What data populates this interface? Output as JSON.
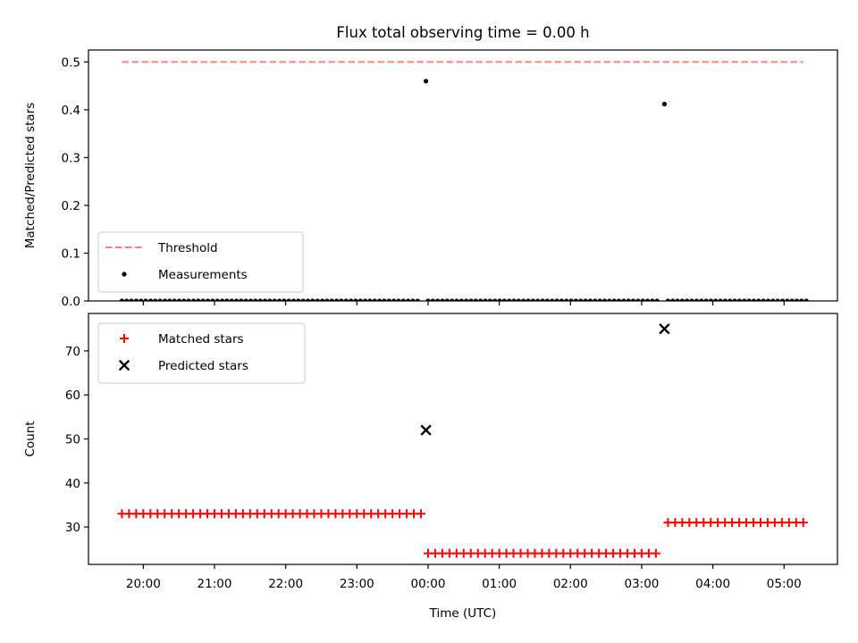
{
  "chart_data": {
    "type": "scatter",
    "title": "Flux total observing time = 0.00 h",
    "x_axis": {
      "label": "Time (UTC)",
      "unit": "hours since 20:00 UTC of first night",
      "range": [
        -0.77,
        9.75
      ],
      "ticks": [
        0,
        1,
        2,
        3,
        4,
        5,
        6,
        7,
        8,
        9
      ],
      "tick_labels": [
        "20:00",
        "21:00",
        "22:00",
        "23:00",
        "00:00",
        "01:00",
        "02:00",
        "03:00",
        "04:00",
        "05:00"
      ]
    },
    "panels": [
      {
        "id": "ratio",
        "ylabel": "Matched/Predicted stars",
        "ylim": [
          0,
          0.525
        ],
        "yticks": [
          0,
          0.1,
          0.2,
          0.3,
          0.4,
          0.5
        ],
        "ytick_labels": [
          "0.0",
          "0.1",
          "0.2",
          "0.3",
          "0.4",
          "0.5"
        ],
        "legend": {
          "position": "lower-left",
          "entries": [
            {
              "label": "Threshold",
              "style": "dashed-line",
              "color": "#ff7f7f"
            },
            {
              "label": "Measurements",
              "style": "dot",
              "color": "#000000"
            }
          ]
        },
        "series": [
          {
            "name": "Threshold",
            "kind": "hline",
            "color": "#ff7f7f",
            "y": 0.5,
            "x_range": [
              -0.3,
              9.27
            ]
          },
          {
            "name": "Measurements",
            "kind": "dots",
            "color": "#000000",
            "segments": [
              {
                "x_start": -0.3,
                "x_end": 3.92,
                "step": 0.067,
                "y": 0.0
              },
              {
                "x_start": 4.0,
                "x_end": 7.27,
                "step": 0.067,
                "y": 0.0
              },
              {
                "x_start": 7.37,
                "x_end": 9.35,
                "step": 0.067,
                "y": 0.0
              }
            ],
            "points": [
              {
                "x": 3.97,
                "y": 0.46
              },
              {
                "x": 7.32,
                "y": 0.412
              }
            ]
          }
        ]
      },
      {
        "id": "count",
        "ylabel": "Count",
        "ylim": [
          21.5,
          78.5
        ],
        "yticks": [
          30,
          40,
          50,
          60,
          70
        ],
        "ytick_labels": [
          "30",
          "40",
          "50",
          "60",
          "70"
        ],
        "legend": {
          "position": "upper-left",
          "entries": [
            {
              "label": "Matched stars",
              "style": "plus",
              "color": "#ff0000"
            },
            {
              "label": "Predicted stars",
              "style": "x",
              "color": "#000000"
            }
          ]
        },
        "series": [
          {
            "name": "Matched stars",
            "kind": "plus",
            "color": "#ff0000",
            "segments": [
              {
                "x_start": -0.3,
                "x_end": 3.92,
                "step": 0.1,
                "y": 33
              },
              {
                "x_start": 4.0,
                "x_end": 7.27,
                "step": 0.1,
                "y": 24
              },
              {
                "x_start": 7.37,
                "x_end": 9.35,
                "step": 0.1,
                "y": 31
              }
            ]
          },
          {
            "name": "Predicted stars",
            "kind": "x",
            "color": "#000000",
            "points": [
              {
                "x": 3.97,
                "y": 52
              },
              {
                "x": 7.32,
                "y": 75
              }
            ]
          }
        ]
      }
    ]
  }
}
